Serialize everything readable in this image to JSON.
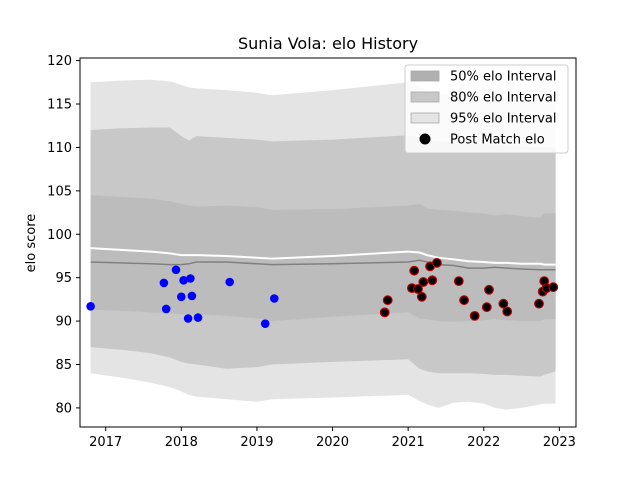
{
  "chart_data": {
    "type": "area",
    "title": "Sunia Vola: elo History",
    "xlabel": "",
    "ylabel": "elo score",
    "xlim": [
      2016.66,
      2023.22
    ],
    "ylim": [
      77.8,
      120.3
    ],
    "x_ticks": [
      2017,
      2018,
      2019,
      2020,
      2021,
      2022,
      2023
    ],
    "y_ticks": [
      80,
      85,
      90,
      95,
      100,
      105,
      110,
      115,
      120
    ],
    "grid": false,
    "legend_position": "top-right",
    "legend": [
      {
        "label": "50% elo Interval",
        "kind": "band",
        "color": "#b0b0b0"
      },
      {
        "label": "80% elo Interval",
        "kind": "band",
        "color": "#c8c8c8"
      },
      {
        "label": "95% elo Interval",
        "kind": "band",
        "color": "#e4e4e4"
      },
      {
        "label": "Post Match elo",
        "kind": "point",
        "color": "#000000"
      }
    ],
    "band_x": [
      2016.8,
      2017.2,
      2017.6,
      2017.85,
      2018.0,
      2018.1,
      2018.2,
      2018.6,
      2019.0,
      2019.2,
      2020.0,
      2021.0,
      2021.15,
      2021.25,
      2021.4,
      2021.6,
      2021.8,
      2022.0,
      2022.15,
      2022.3,
      2022.5,
      2022.75,
      2022.8,
      2022.95
    ],
    "median": [
      96.8,
      96.7,
      96.6,
      96.5,
      96.5,
      96.6,
      96.8,
      96.8,
      96.6,
      96.5,
      96.6,
      96.8,
      97.0,
      96.8,
      96.5,
      96.4,
      96.1,
      96.1,
      96.2,
      96.1,
      96.0,
      95.9,
      95.9,
      95.9
    ],
    "mean_line": [
      98.4,
      98.2,
      98.0,
      97.8,
      97.6,
      97.6,
      97.6,
      97.5,
      97.3,
      97.2,
      97.5,
      98.0,
      97.9,
      97.6,
      97.3,
      97.1,
      96.9,
      96.8,
      96.7,
      96.7,
      96.6,
      96.6,
      96.5,
      96.5
    ],
    "ci50": {
      "upper": [
        104.5,
        104.3,
        104.1,
        103.8,
        103.5,
        103.3,
        103.2,
        103.3,
        103.1,
        102.8,
        102.9,
        103.3,
        103.5,
        103.0,
        102.8,
        102.7,
        102.5,
        102.4,
        102.2,
        102.3,
        102.1,
        101.9,
        102.4,
        102.4
      ],
      "lower": [
        91.3,
        91.2,
        91.0,
        90.9,
        90.8,
        90.7,
        90.8,
        90.6,
        90.3,
        90.0,
        90.5,
        91.0,
        90.3,
        90.2,
        90.0,
        89.9,
        90.0,
        90.1,
        90.2,
        90.1,
        90.0,
        90.0,
        90.2,
        90.2
      ]
    },
    "ci80": {
      "upper": [
        112.0,
        112.2,
        112.3,
        112.3,
        111.3,
        110.8,
        111.3,
        111.1,
        110.9,
        110.7,
        110.9,
        111.4,
        111.2,
        110.9,
        110.7,
        110.6,
        110.4,
        110.4,
        110.3,
        110.2,
        110.1,
        110.0,
        110.0,
        110.0
      ],
      "lower": [
        87.0,
        86.7,
        86.3,
        85.8,
        85.3,
        85.1,
        85.0,
        84.5,
        84.7,
        85.0,
        85.3,
        85.6,
        84.5,
        84.2,
        84.0,
        84.0,
        84.0,
        83.9,
        83.8,
        83.8,
        83.7,
        83.6,
        83.8,
        84.2
      ]
    },
    "ci95": {
      "upper": [
        117.5,
        117.7,
        117.8,
        117.6,
        117.2,
        116.9,
        116.8,
        116.6,
        116.3,
        116.0,
        116.6,
        117.5,
        117.0,
        116.5,
        116.2,
        116.0,
        115.8,
        115.6,
        115.5,
        115.4,
        115.3,
        115.2,
        115.2,
        115.2
      ],
      "lower": [
        84.0,
        83.5,
        82.9,
        82.4,
        81.9,
        81.5,
        81.3,
        81.0,
        80.7,
        81.0,
        81.2,
        81.5,
        80.8,
        80.4,
        80.0,
        80.6,
        80.7,
        80.5,
        80.0,
        79.8,
        80.0,
        80.4,
        80.5,
        80.5
      ]
    },
    "series": [
      {
        "color": "#0000ff",
        "edge": "none",
        "points": [
          [
            2016.8,
            91.7
          ],
          [
            2017.77,
            94.4
          ],
          [
            2017.8,
            91.4
          ],
          [
            2017.93,
            95.9
          ],
          [
            2018.0,
            92.8
          ],
          [
            2018.03,
            94.7
          ],
          [
            2018.09,
            90.3
          ],
          [
            2018.12,
            94.9
          ],
          [
            2018.14,
            92.9
          ],
          [
            2018.22,
            90.4
          ],
          [
            2018.64,
            94.5
          ],
          [
            2019.11,
            89.7
          ],
          [
            2019.23,
            92.6
          ]
        ]
      },
      {
        "color": "#cc0000",
        "edge": "#b40000",
        "points": [
          [
            2020.69,
            91.0
          ],
          [
            2020.73,
            92.4
          ],
          [
            2021.05,
            93.8
          ],
          [
            2021.08,
            95.8
          ],
          [
            2021.13,
            93.7
          ],
          [
            2021.18,
            92.8
          ],
          [
            2021.2,
            94.5
          ],
          [
            2021.29,
            96.3
          ],
          [
            2021.32,
            94.7
          ],
          [
            2021.38,
            96.7
          ],
          [
            2021.67,
            94.6
          ],
          [
            2021.74,
            92.4
          ],
          [
            2021.88,
            90.6
          ],
          [
            2022.04,
            91.6
          ],
          [
            2022.07,
            93.6
          ],
          [
            2022.26,
            92.0
          ],
          [
            2022.31,
            91.1
          ],
          [
            2022.73,
            92.0
          ],
          [
            2022.78,
            93.4
          ],
          [
            2022.8,
            94.6
          ],
          [
            2022.83,
            93.8
          ],
          [
            2022.92,
            93.9
          ]
        ]
      }
    ]
  }
}
